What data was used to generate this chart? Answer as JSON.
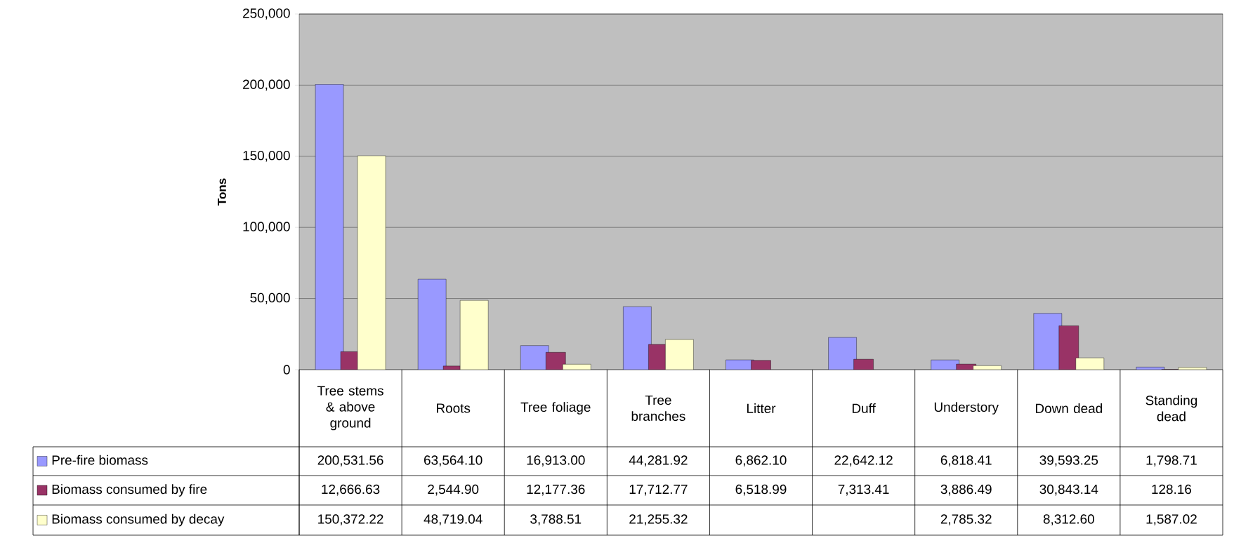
{
  "chart_data": {
    "type": "bar",
    "ylabel": "Tons",
    "categories": [
      "Tree stems & above ground",
      "Roots",
      "Tree foliage",
      "Tree branches",
      "Litter",
      "Duff",
      "Understory",
      "Down dead",
      "Standing dead"
    ],
    "series": [
      {
        "name": "Pre-fire biomass",
        "color": "#9999ff",
        "values": [
          200531.56,
          63564.1,
          16913.0,
          44281.92,
          6862.1,
          22642.12,
          6818.41,
          39593.25,
          1798.71
        ],
        "value_labels": [
          "200,531.56",
          "63,564.10",
          "16,913.00",
          "44,281.92",
          "6,862.10",
          "22,642.12",
          "6,818.41",
          "39,593.25",
          "1,798.71"
        ]
      },
      {
        "name": "Biomass consumed by fire",
        "color": "#993366",
        "values": [
          12666.63,
          2544.9,
          12177.36,
          17712.77,
          6518.99,
          7313.41,
          3886.49,
          30843.14,
          128.16
        ],
        "value_labels": [
          "12,666.63",
          "2,544.90",
          "12,177.36",
          "17,712.77",
          "6,518.99",
          "7,313.41",
          "3,886.49",
          "30,843.14",
          "128.16"
        ]
      },
      {
        "name": "Biomass consumed by decay",
        "color": "#ffffcc",
        "values": [
          150372.22,
          48719.04,
          3788.51,
          21255.32,
          null,
          null,
          2785.32,
          8312.6,
          1587.02
        ],
        "value_labels": [
          "150,372.22",
          "48,719.04",
          "3,788.51",
          "21,255.32",
          null,
          null,
          "2,785.32",
          "8,312.60",
          "1,587.02"
        ]
      }
    ],
    "ylim": [
      0,
      250000
    ],
    "yticks": [
      0,
      {
        "value": 50000,
        "label": "50,000"
      },
      {
        "value": 100000,
        "label": "100,000"
      },
      {
        "value": 150000,
        "label": "150,000"
      },
      {
        "value": 200000,
        "label": "200,000"
      },
      {
        "value": 250000,
        "label": "250,000"
      }
    ],
    "grid": "y",
    "legend": "bottom left"
  }
}
